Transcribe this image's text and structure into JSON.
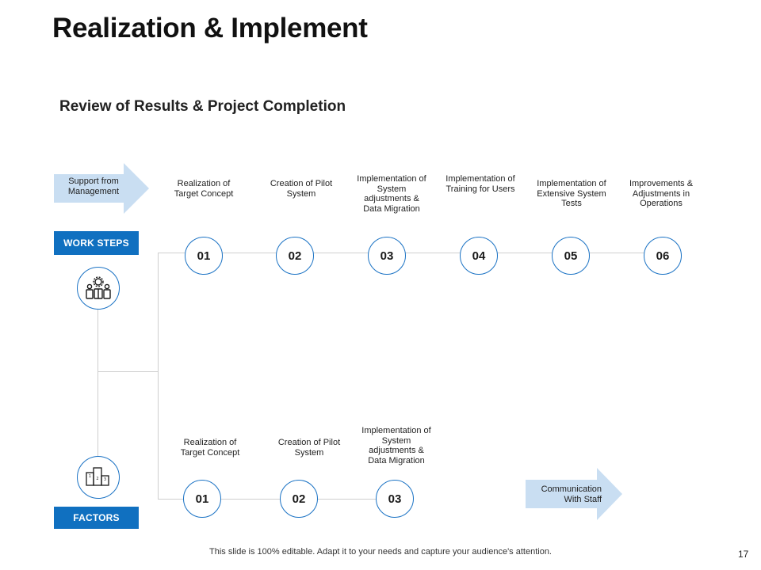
{
  "title": "Realization & Implement",
  "subtitle": "Review of Results & Project Completion",
  "arrows": {
    "support": "Support from Management",
    "communication": "Communication With Staff"
  },
  "labels": {
    "work_steps": "WORK STEPS",
    "factors": "FACTORS"
  },
  "work_steps": [
    {
      "num": "01",
      "label": "Realization of Target Concept"
    },
    {
      "num": "02",
      "label": "Creation of Pilot System"
    },
    {
      "num": "03",
      "label": "Implementation of System adjustments & Data Migration"
    },
    {
      "num": "04",
      "label": "Implementation of Training for Users"
    },
    {
      "num": "05",
      "label": "Implementation of Extensive System Tests"
    },
    {
      "num": "06",
      "label": "Improvements & Adjustments in Operations"
    }
  ],
  "factors": [
    {
      "num": "01",
      "label": "Realization of Target Concept"
    },
    {
      "num": "02",
      "label": "Creation of Pilot System"
    },
    {
      "num": "03",
      "label": "Implementation of System adjustments & Data Migration"
    }
  ],
  "footer": "This slide is 100% editable. Adapt it to your needs and capture your audience's attention.",
  "page_number": "17",
  "colors": {
    "accent": "#1070c0",
    "arrow_fill": "#c9def2",
    "connector": "#cfcfcf"
  },
  "icons": {
    "work_steps": "team-icon",
    "factors": "podium-icon"
  }
}
